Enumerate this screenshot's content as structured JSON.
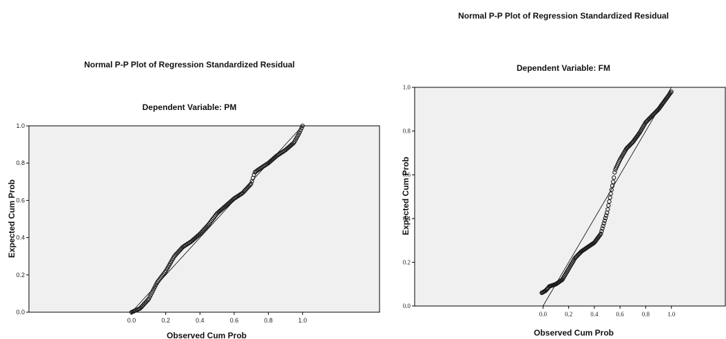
{
  "chart_data": [
    {
      "type": "scatter",
      "title": "Normal P-P Plot of Regression Standardized Residual",
      "subtitle": "Dependent Variable: PM",
      "xlabel": "Observed Cum Prob",
      "ylabel": "Expected Cum Prob",
      "xlim": [
        -0.6,
        1.45
      ],
      "ylim": [
        0,
        1
      ],
      "xticks": [
        "0.0",
        "0.2",
        "0.4",
        "0.6",
        "0.8",
        "1.0"
      ],
      "yticks": [
        "0.0",
        "0.2",
        "0.4",
        "0.6",
        "0.8",
        "1.0"
      ],
      "reference_line": [
        [
          0,
          0
        ],
        [
          1,
          1
        ]
      ],
      "curve": [
        [
          0.0,
          0.0
        ],
        [
          0.05,
          0.02
        ],
        [
          0.1,
          0.07
        ],
        [
          0.15,
          0.16
        ],
        [
          0.2,
          0.22
        ],
        [
          0.25,
          0.3
        ],
        [
          0.3,
          0.35
        ],
        [
          0.35,
          0.38
        ],
        [
          0.4,
          0.42
        ],
        [
          0.45,
          0.47
        ],
        [
          0.5,
          0.53
        ],
        [
          0.55,
          0.57
        ],
        [
          0.6,
          0.61
        ],
        [
          0.65,
          0.64
        ],
        [
          0.7,
          0.69
        ],
        [
          0.72,
          0.75
        ],
        [
          0.75,
          0.77
        ],
        [
          0.8,
          0.8
        ],
        [
          0.85,
          0.84
        ],
        [
          0.9,
          0.87
        ],
        [
          0.95,
          0.91
        ],
        [
          0.98,
          0.96
        ],
        [
          1.0,
          1.0
        ]
      ],
      "grid": false,
      "legend": "none"
    },
    {
      "type": "scatter",
      "title": "Normal P-P Plot of Regression Standardized Residual",
      "subtitle": "Dependent Variable: FM",
      "xlabel": "Observed Cum Prob",
      "ylabel": "Expected Cum Prob",
      "xlim": [
        -1.0,
        1.42
      ],
      "ylim": [
        0,
        1
      ],
      "xticks": [
        "0.0",
        "0.2",
        "0.4",
        "0.6",
        "0.8",
        "1.0"
      ],
      "yticks": [
        "0.0",
        "0.2",
        "0.4",
        "0.6",
        "0.8",
        "1.0"
      ],
      "reference_line": [
        [
          0,
          0
        ],
        [
          1,
          1
        ]
      ],
      "curve": [
        [
          -0.01,
          0.06
        ],
        [
          0.02,
          0.07
        ],
        [
          0.05,
          0.09
        ],
        [
          0.1,
          0.1
        ],
        [
          0.15,
          0.12
        ],
        [
          0.2,
          0.17
        ],
        [
          0.25,
          0.22
        ],
        [
          0.3,
          0.25
        ],
        [
          0.35,
          0.27
        ],
        [
          0.4,
          0.29
        ],
        [
          0.45,
          0.33
        ],
        [
          0.5,
          0.43
        ],
        [
          0.55,
          0.58
        ],
        [
          0.56,
          0.62
        ],
        [
          0.6,
          0.67
        ],
        [
          0.65,
          0.72
        ],
        [
          0.7,
          0.75
        ],
        [
          0.75,
          0.79
        ],
        [
          0.8,
          0.84
        ],
        [
          0.85,
          0.87
        ],
        [
          0.9,
          0.9
        ],
        [
          0.95,
          0.94
        ],
        [
          1.0,
          0.98
        ]
      ],
      "grid": false,
      "legend": "none"
    }
  ]
}
